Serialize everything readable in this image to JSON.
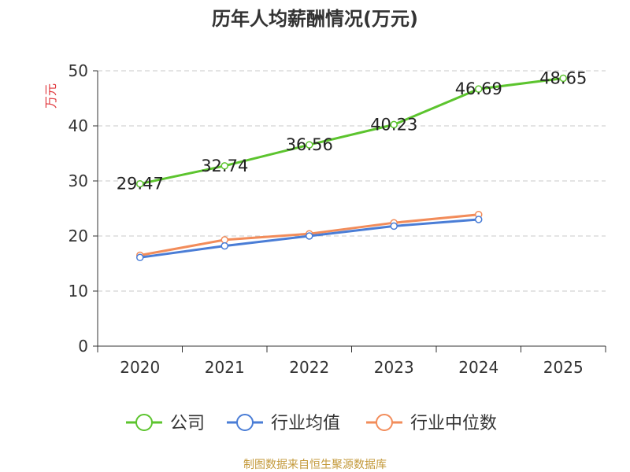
{
  "chart_data": {
    "type": "line",
    "title": "历年人均薪酬情况(万元)",
    "xlabel": "",
    "ylabel": "万元",
    "categories": [
      "2020",
      "2021",
      "2022",
      "2023",
      "2024",
      "2025"
    ],
    "ylim": [
      0,
      50
    ],
    "yticks": [
      "0",
      "10",
      "20",
      "30",
      "40",
      "50"
    ],
    "grid": true,
    "legend_position": "bottom",
    "series": [
      {
        "name": "公司",
        "color": "#5cc42e",
        "values": [
          29.47,
          32.74,
          36.56,
          40.23,
          46.69,
          48.65
        ],
        "labels": [
          "29.47",
          "32.74",
          "36.56",
          "40.23",
          "46.69",
          "48.65"
        ]
      },
      {
        "name": "行业均值",
        "color": "#4a7dd6",
        "values": [
          16.1,
          18.2,
          20.0,
          21.8,
          23.0,
          null
        ]
      },
      {
        "name": "行业中位数",
        "color": "#f28c5a",
        "values": [
          16.5,
          19.3,
          20.4,
          22.4,
          23.9,
          null
        ]
      }
    ]
  },
  "source_text": "制图数据来自恒生聚源数据库",
  "colors": {
    "ylabel": "#e0393e",
    "source": "#c49a3c",
    "axis": "#333333",
    "grid": "#c8c8c8"
  }
}
